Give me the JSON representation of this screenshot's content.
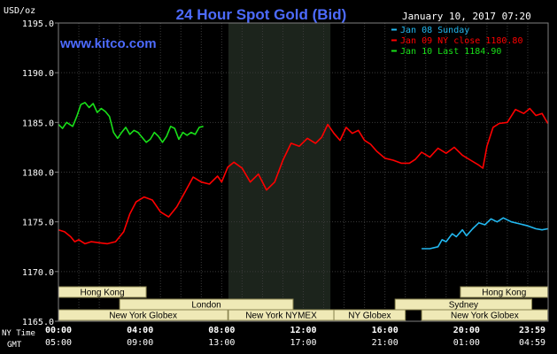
{
  "colors": {
    "background": "#000000",
    "grid": "#3a3a3a",
    "frame": "#808080",
    "axis_text": "#ffffff",
    "title": "#4d6bff",
    "brand": "#4d6bff",
    "shade": "#1c241c",
    "band_fill": "#efe9b6",
    "band_stroke": "#8a8450",
    "band_text": "#000000"
  },
  "chart_data": {
    "type": "line",
    "title": "24 Hour Spot Gold (Bid)",
    "ylabel": "USD/oz",
    "brand": "www.kitco.com",
    "timestamp": "January 10, 2017 07:20",
    "ylim": [
      1165,
      1195
    ],
    "yticks": [
      "1195.0",
      "1190.0",
      "1185.0",
      "1180.0",
      "1175.0",
      "1170.0",
      "1165.0"
    ],
    "ytick_values": [
      1195,
      1190,
      1185,
      1180,
      1175,
      1170,
      1165
    ],
    "xlim": [
      0,
      24
    ],
    "grid": true,
    "legend_placement": "top-right",
    "x_ticks": [
      {
        "x": 0,
        "ny": "00:00",
        "gmt": "05:00"
      },
      {
        "x": 4,
        "ny": "04:00",
        "gmt": "09:00"
      },
      {
        "x": 8,
        "ny": "08:00",
        "gmt": "13:00"
      },
      {
        "x": 12,
        "ny": "12:00",
        "gmt": "17:00"
      },
      {
        "x": 16,
        "ny": "16:00",
        "gmt": "21:00"
      },
      {
        "x": 20,
        "ny": "20:00",
        "gmt": "01:00"
      },
      {
        "x": 23.983,
        "ny": "23:59",
        "gmt": "04:59"
      }
    ],
    "x_row_labels": {
      "ny": "NY Time",
      "gmt": "GMT"
    },
    "shaded_range": [
      8.33,
      13.33
    ],
    "series": [
      {
        "name": "Jan 08 Sunday",
        "color": "#22b8f0",
        "x": [
          17.8,
          18.2,
          18.6,
          18.8,
          19.0,
          19.3,
          19.5,
          19.8,
          20.0,
          20.3,
          20.6,
          20.9,
          21.2,
          21.5,
          21.8,
          22.2,
          22.6,
          23.0,
          23.4,
          23.7,
          23.983
        ],
        "values": [
          1172.3,
          1172.3,
          1172.5,
          1173.2,
          1173.0,
          1173.8,
          1173.5,
          1174.2,
          1173.6,
          1174.3,
          1174.9,
          1174.7,
          1175.3,
          1175.0,
          1175.4,
          1175.0,
          1174.8,
          1174.6,
          1174.3,
          1174.2,
          1174.3
        ]
      },
      {
        "name": "Jan 09 NY close 1180.80",
        "color": "#ff0000",
        "x": [
          0.0,
          0.3,
          0.6,
          0.8,
          1.0,
          1.3,
          1.6,
          2.0,
          2.4,
          2.8,
          3.2,
          3.5,
          3.8,
          4.2,
          4.6,
          5.0,
          5.4,
          5.8,
          6.2,
          6.6,
          7.0,
          7.4,
          7.8,
          8.0,
          8.3,
          8.6,
          9.0,
          9.4,
          9.8,
          10.2,
          10.6,
          11.0,
          11.4,
          11.8,
          12.2,
          12.6,
          12.9,
          13.2,
          13.5,
          13.8,
          14.1,
          14.4,
          14.7,
          15.0,
          15.3,
          15.6,
          16.0,
          16.4,
          16.8,
          17.2,
          17.5,
          17.8,
          18.2,
          18.6,
          19.0,
          19.4,
          19.8,
          20.2,
          20.6,
          20.8,
          21.0,
          21.3,
          21.6,
          22.0,
          22.4,
          22.8,
          23.1,
          23.4,
          23.7,
          23.983
        ],
        "values": [
          1174.2,
          1174.0,
          1173.5,
          1173.0,
          1173.2,
          1172.8,
          1173.0,
          1172.9,
          1172.8,
          1173.0,
          1174.0,
          1175.8,
          1177.0,
          1177.5,
          1177.2,
          1176.0,
          1175.5,
          1176.5,
          1178.0,
          1179.5,
          1179.0,
          1178.8,
          1179.6,
          1179.0,
          1180.5,
          1181.0,
          1180.4,
          1179.0,
          1179.8,
          1178.2,
          1179.0,
          1181.2,
          1182.9,
          1182.6,
          1183.4,
          1182.9,
          1183.5,
          1184.8,
          1183.9,
          1183.2,
          1184.5,
          1183.9,
          1184.2,
          1183.2,
          1182.8,
          1182.1,
          1181.4,
          1181.2,
          1180.9,
          1180.9,
          1181.3,
          1182.0,
          1181.5,
          1182.4,
          1181.9,
          1182.5,
          1181.7,
          1181.2,
          1180.7,
          1180.4,
          1182.6,
          1184.5,
          1184.9,
          1185.0,
          1186.3,
          1185.9,
          1186.4,
          1185.7,
          1185.9,
          1184.9
        ]
      },
      {
        "name": "Jan 10 Last 1184.90",
        "color": "#19e019",
        "x": [
          0.0,
          0.2,
          0.4,
          0.7,
          0.9,
          1.1,
          1.3,
          1.5,
          1.7,
          1.9,
          2.1,
          2.3,
          2.5,
          2.7,
          2.9,
          3.1,
          3.3,
          3.5,
          3.7,
          3.9,
          4.1,
          4.3,
          4.5,
          4.7,
          4.9,
          5.1,
          5.3,
          5.5,
          5.7,
          5.9,
          6.1,
          6.3,
          6.5,
          6.7,
          6.9,
          7.1
        ],
        "values": [
          1184.8,
          1184.4,
          1185.0,
          1184.6,
          1185.6,
          1186.8,
          1187.0,
          1186.5,
          1186.9,
          1186.0,
          1186.4,
          1186.1,
          1185.6,
          1184.0,
          1183.4,
          1184.0,
          1184.5,
          1183.8,
          1184.2,
          1184.0,
          1183.5,
          1183.0,
          1183.3,
          1184.0,
          1183.6,
          1183.0,
          1183.6,
          1184.6,
          1184.4,
          1183.3,
          1184.0,
          1183.7,
          1184.0,
          1183.8,
          1184.5,
          1184.6
        ]
      }
    ],
    "sessions": [
      {
        "label": "Hong Kong",
        "start": 0.0,
        "end": 4.3,
        "row": 0
      },
      {
        "label": "London",
        "start": 3.0,
        "end": 11.5,
        "row": 1
      },
      {
        "label": "New York Globex",
        "start": 0.0,
        "end": 8.3,
        "row": 2
      },
      {
        "label": "New York NYMEX",
        "start": 8.33,
        "end": 13.5,
        "row": 2
      },
      {
        "label": "NY Globex",
        "start": 13.5,
        "end": 17.0,
        "row": 2
      },
      {
        "label": "Sydney",
        "start": 16.5,
        "end": 23.2,
        "row": 1
      },
      {
        "label": "Hong Kong",
        "start": 19.7,
        "end": 23.983,
        "row": 0
      },
      {
        "label": "New York Globex",
        "start": 17.8,
        "end": 23.983,
        "row": 2
      }
    ]
  }
}
